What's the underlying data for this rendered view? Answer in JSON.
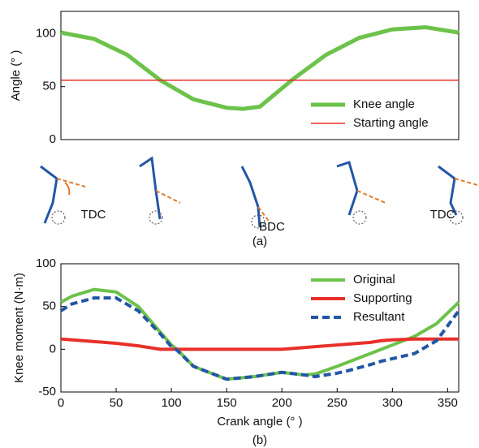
{
  "chart_data": [
    {
      "type": "line",
      "ylabel": "Angle (° )",
      "xlim": [
        0,
        360
      ],
      "ylim": [
        0,
        121
      ],
      "yticks": [
        0,
        50,
        100
      ],
      "legend": "lower right",
      "x": [
        0,
        30,
        60,
        90,
        120,
        150,
        165,
        180,
        210,
        240,
        270,
        300,
        330,
        360
      ],
      "series": [
        {
          "name": "Knee angle",
          "color": "#6cc24a",
          "width": 5,
          "values": [
            101,
            95,
            80,
            56,
            38,
            30,
            29,
            31,
            57,
            80,
            96,
            104,
            106,
            101
          ]
        },
        {
          "name": "Starting angle",
          "color": "#e8302a",
          "width": 1.5,
          "values": [
            56,
            56,
            56,
            56,
            56,
            56,
            56,
            56,
            56,
            56,
            56,
            56,
            56,
            56
          ]
        }
      ],
      "annotations": [
        "TDC",
        "BDC",
        "TDC"
      ],
      "caption": "(a)"
    },
    {
      "type": "line",
      "ylabel": "Knee moment (N·m)",
      "xlabel": "Crank angle (° )",
      "xlim": [
        0,
        360
      ],
      "xticks": [
        0,
        50,
        100,
        150,
        200,
        250,
        300,
        350
      ],
      "ylim": [
        -50,
        100
      ],
      "yticks": [
        -50,
        0,
        50,
        100
      ],
      "legend": "upper right",
      "x": [
        0,
        10,
        30,
        50,
        70,
        90,
        100,
        105,
        120,
        150,
        175,
        200,
        220,
        230,
        250,
        260,
        280,
        290,
        300,
        320,
        340,
        360
      ],
      "series": [
        {
          "name": "Original",
          "color": "#6cc24a",
          "width": 4,
          "values": [
            55,
            62,
            70,
            67,
            50,
            20,
            5,
            0,
            -20,
            -35,
            -32,
            -27,
            -30,
            -29,
            -20,
            -15,
            -5,
            0,
            5,
            15,
            30,
            55
          ]
        },
        {
          "name": "Supporting",
          "color": "#e8302a",
          "width": 4,
          "values": [
            12,
            11,
            9,
            7,
            4,
            0,
            0,
            0,
            0,
            0,
            0,
            0,
            2,
            3,
            5,
            6,
            8,
            10,
            11,
            12,
            12,
            12
          ]
        },
        {
          "name": "Resultant",
          "color": "#2456a6",
          "width": 4,
          "style": "dashed",
          "values": [
            45,
            53,
            60,
            60,
            45,
            18,
            3,
            -1,
            -20,
            -35,
            -32,
            -27,
            -30,
            -32,
            -28,
            -25,
            -18,
            -14,
            -11,
            -5,
            10,
            45
          ]
        }
      ],
      "caption": "(b)"
    }
  ]
}
